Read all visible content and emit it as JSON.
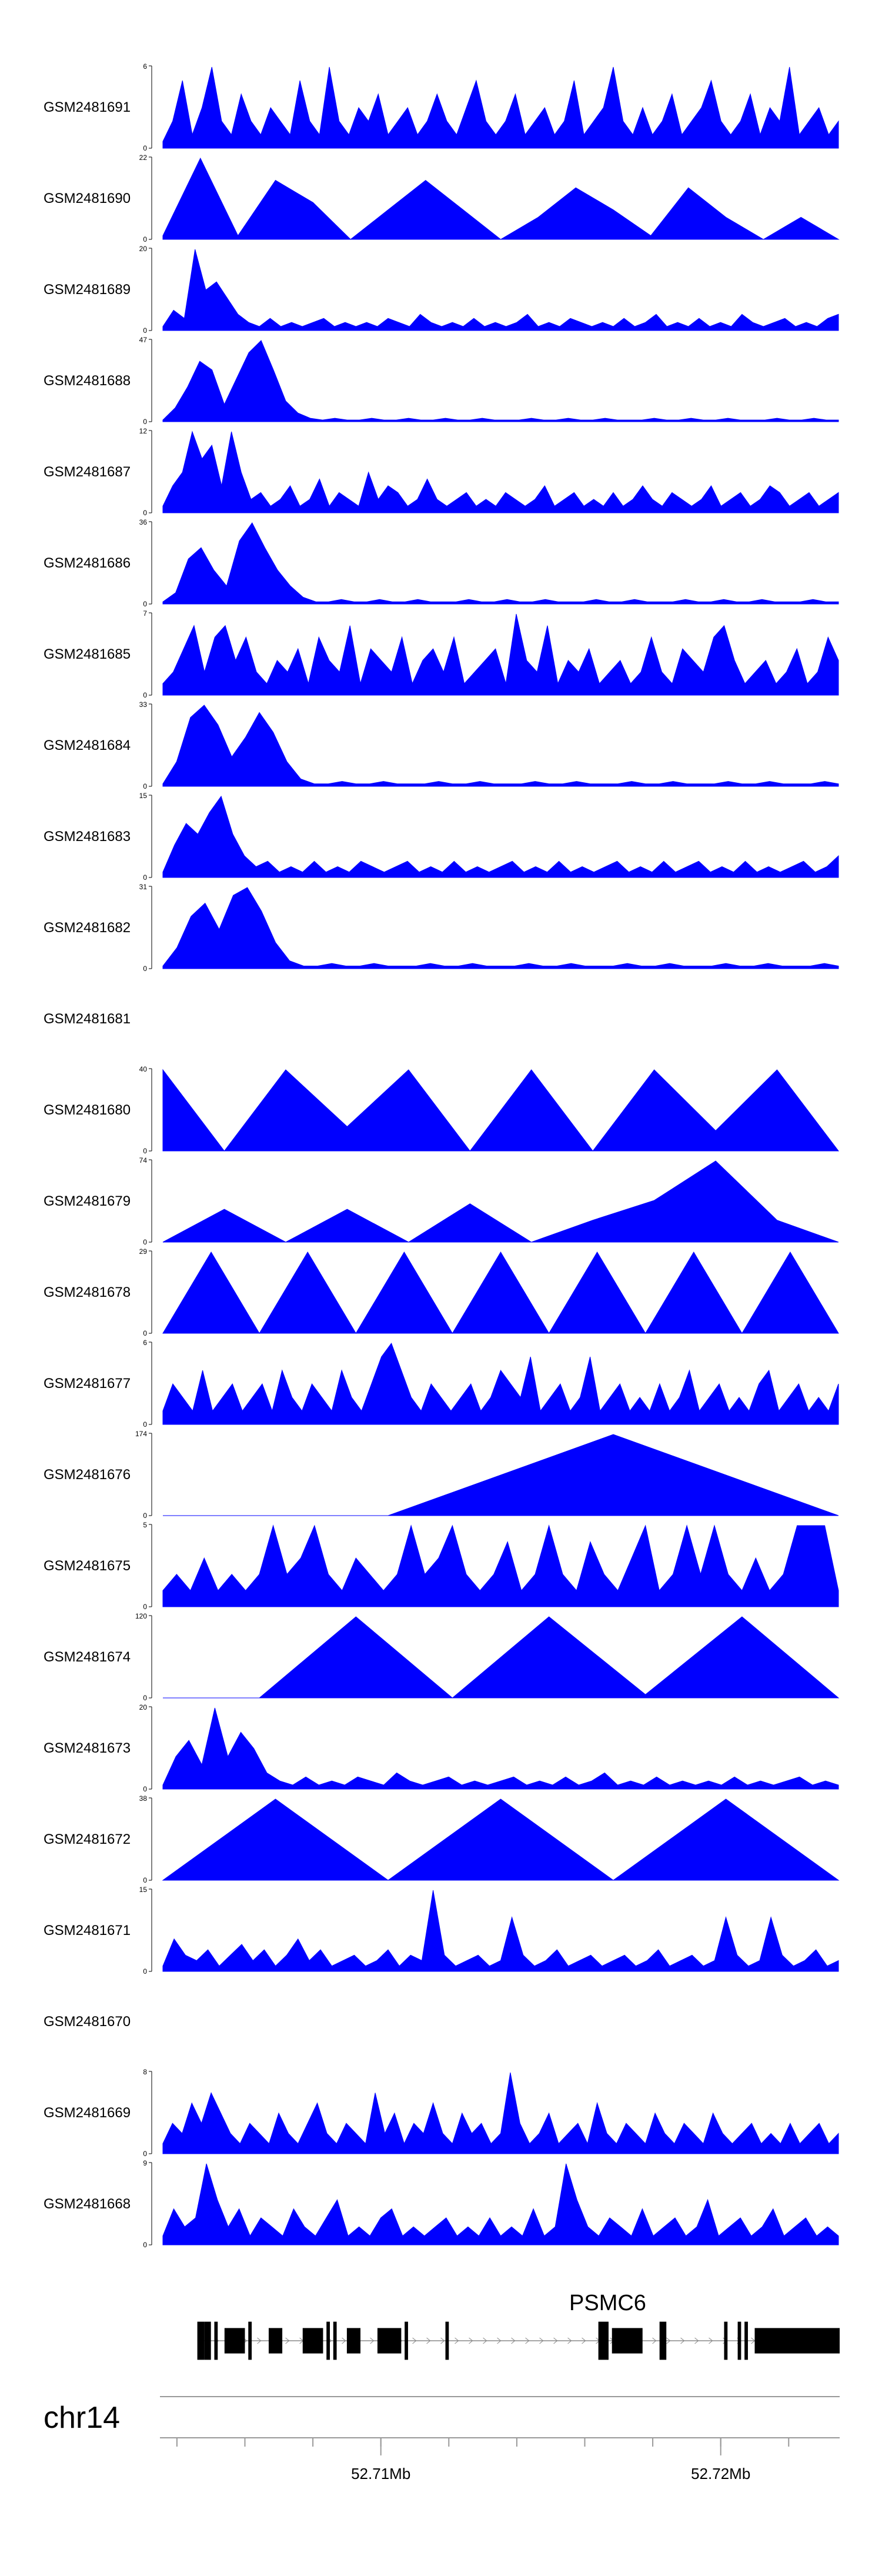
{
  "chart_data": {
    "type": "area",
    "title": "",
    "chromosome": "chr14",
    "x_range_mb": [
      52.7035,
      52.7235
    ],
    "fill_color": "#0000ff",
    "x_ticks": [
      {
        "pos": 52.71,
        "label": "52.71Mb"
      },
      {
        "pos": 52.72,
        "label": "52.72Mb"
      }
    ],
    "gene": {
      "name": "PSMC6",
      "exons": [
        [
          52.7046,
          52.7048
        ],
        [
          52.7048,
          52.705
        ],
        [
          52.7051,
          52.7052
        ],
        [
          52.7054,
          52.706
        ],
        [
          52.7061,
          52.7062
        ],
        [
          52.7067,
          52.7071
        ],
        [
          52.7077,
          52.7083
        ],
        [
          52.7084,
          52.7085
        ],
        [
          52.7086,
          52.7087
        ],
        [
          52.709,
          52.7094
        ],
        [
          52.7099,
          52.7106
        ],
        [
          52.7107,
          52.7108
        ],
        [
          52.7119,
          52.712
        ],
        [
          52.7164,
          52.7167
        ],
        [
          52.7168,
          52.7177
        ],
        [
          52.7182,
          52.7184
        ],
        [
          52.7201,
          52.7202
        ],
        [
          52.7205,
          52.7206
        ],
        [
          52.7207,
          52.7208
        ],
        [
          52.721,
          52.7235
        ]
      ]
    },
    "tracks": [
      {
        "name": "GSM2481691",
        "ymax": 6,
        "peaks": [
          0.5,
          2,
          5,
          1,
          3,
          6,
          2,
          1,
          4,
          2,
          1,
          3,
          2,
          1,
          5,
          2,
          1,
          6,
          2,
          1,
          3,
          2,
          4,
          1,
          2,
          3,
          1,
          2,
          4,
          2,
          1,
          3,
          5,
          2,
          1,
          2,
          4,
          1,
          2,
          3,
          1,
          2,
          5,
          1,
          2,
          3,
          6,
          2,
          1,
          3,
          1,
          2,
          4,
          1,
          2,
          3,
          5,
          2,
          1,
          2,
          4,
          1,
          3,
          2,
          6,
          1,
          2,
          3,
          1,
          2
        ]
      },
      {
        "name": "GSM2481690",
        "ymax": 22,
        "peaks": [
          1,
          22,
          1,
          16,
          10,
          0,
          8,
          16,
          8,
          0,
          6,
          14,
          8,
          1,
          14,
          6,
          0,
          6,
          0
        ]
      },
      {
        "name": "GSM2481689",
        "ymax": 20,
        "peaks": [
          1,
          5,
          3,
          20,
          10,
          12,
          8,
          4,
          2,
          1,
          3,
          1,
          2,
          1,
          2,
          3,
          1,
          2,
          1,
          2,
          1,
          3,
          2,
          1,
          4,
          2,
          1,
          2,
          1,
          3,
          1,
          2,
          1,
          2,
          4,
          1,
          2,
          1,
          3,
          2,
          1,
          2,
          1,
          3,
          1,
          2,
          4,
          1,
          2,
          1,
          3,
          1,
          2,
          1,
          4,
          2,
          1,
          2,
          3,
          1,
          2,
          1,
          3,
          4
        ]
      },
      {
        "name": "GSM2481688",
        "ymax": 47,
        "peaks": [
          1,
          8,
          20,
          35,
          30,
          10,
          25,
          40,
          47,
          30,
          12,
          5,
          2,
          1,
          2,
          1,
          1,
          2,
          1,
          1,
          2,
          1,
          1,
          2,
          1,
          1,
          2,
          1,
          1,
          1,
          2,
          1,
          1,
          2,
          1,
          1,
          2,
          1,
          1,
          1,
          2,
          1,
          1,
          2,
          1,
          1,
          2,
          1,
          1,
          1,
          2,
          1,
          1,
          2,
          1,
          1
        ]
      },
      {
        "name": "GSM2481687",
        "ymax": 12,
        "peaks": [
          1,
          4,
          6,
          12,
          8,
          10,
          4,
          12,
          6,
          2,
          3,
          1,
          2,
          4,
          1,
          2,
          5,
          1,
          3,
          2,
          1,
          6,
          2,
          4,
          3,
          1,
          2,
          5,
          2,
          1,
          2,
          3,
          1,
          2,
          1,
          3,
          2,
          1,
          2,
          4,
          1,
          2,
          3,
          1,
          2,
          1,
          3,
          1,
          2,
          4,
          2,
          1,
          3,
          2,
          1,
          2,
          4,
          1,
          2,
          3,
          1,
          2,
          4,
          3,
          1,
          2,
          3,
          1,
          2,
          3
        ]
      },
      {
        "name": "GSM2481686",
        "ymax": 36,
        "peaks": [
          1,
          5,
          20,
          25,
          15,
          8,
          28,
          36,
          25,
          15,
          8,
          3,
          1,
          1,
          2,
          1,
          1,
          2,
          1,
          1,
          2,
          1,
          1,
          1,
          2,
          1,
          1,
          2,
          1,
          1,
          2,
          1,
          1,
          1,
          2,
          1,
          1,
          2,
          1,
          1,
          1,
          2,
          1,
          1,
          2,
          1,
          1,
          2,
          1,
          1,
          1,
          2,
          1,
          1
        ]
      },
      {
        "name": "GSM2481685",
        "ymax": 7,
        "peaks": [
          1,
          2,
          4,
          6,
          2,
          5,
          6,
          3,
          5,
          2,
          1,
          3,
          2,
          4,
          1,
          5,
          3,
          2,
          6,
          1,
          4,
          3,
          2,
          5,
          1,
          3,
          4,
          2,
          5,
          1,
          2,
          3,
          4,
          1,
          7,
          3,
          2,
          6,
          1,
          3,
          2,
          4,
          1,
          2,
          3,
          1,
          2,
          5,
          2,
          1,
          4,
          3,
          2,
          5,
          6,
          3,
          1,
          2,
          3,
          1,
          2,
          4,
          1,
          2,
          5,
          3
        ]
      },
      {
        "name": "GSM2481684",
        "ymax": 33,
        "peaks": [
          1,
          10,
          28,
          33,
          25,
          12,
          20,
          30,
          22,
          10,
          3,
          1,
          1,
          2,
          1,
          1,
          2,
          1,
          1,
          1,
          2,
          1,
          1,
          2,
          1,
          1,
          1,
          2,
          1,
          1,
          2,
          1,
          1,
          1,
          2,
          1,
          1,
          2,
          1,
          1,
          1,
          2,
          1,
          1,
          2,
          1,
          1,
          1,
          2,
          1
        ]
      },
      {
        "name": "GSM2481683",
        "ymax": 15,
        "peaks": [
          1,
          6,
          10,
          8,
          12,
          15,
          8,
          4,
          2,
          3,
          1,
          2,
          1,
          3,
          1,
          2,
          1,
          3,
          2,
          1,
          2,
          3,
          1,
          2,
          1,
          3,
          1,
          2,
          1,
          2,
          3,
          1,
          2,
          1,
          3,
          1,
          2,
          1,
          2,
          3,
          1,
          2,
          1,
          3,
          1,
          2,
          3,
          1,
          2,
          1,
          3,
          1,
          2,
          1,
          2,
          3,
          1,
          2,
          4
        ]
      },
      {
        "name": "GSM2481682",
        "ymax": 31,
        "peaks": [
          1,
          8,
          20,
          25,
          15,
          28,
          31,
          22,
          10,
          3,
          1,
          1,
          2,
          1,
          1,
          2,
          1,
          1,
          1,
          2,
          1,
          1,
          2,
          1,
          1,
          1,
          2,
          1,
          1,
          2,
          1,
          1,
          1,
          2,
          1,
          1,
          2,
          1,
          1,
          1,
          2,
          1,
          1,
          2,
          1,
          1,
          1,
          2,
          1
        ]
      },
      {
        "name": "GSM2481681",
        "ymax": null,
        "peaks": []
      },
      {
        "name": "GSM2481680",
        "ymax": 40,
        "peaks": [
          40,
          0,
          40,
          12,
          40,
          0,
          40,
          0,
          40,
          10,
          40,
          0
        ]
      },
      {
        "name": "GSM2481679",
        "ymax": 74,
        "peaks": [
          0,
          30,
          0,
          30,
          0,
          35,
          0,
          20,
          38,
          74,
          20,
          0
        ]
      },
      {
        "name": "GSM2481678",
        "ymax": 29,
        "peaks": [
          0,
          29,
          0,
          29,
          0,
          29,
          0,
          29,
          0,
          29,
          0,
          29,
          0,
          29,
          0
        ]
      },
      {
        "name": "GSM2481677",
        "ymax": 6,
        "peaks": [
          1,
          3,
          2,
          1,
          4,
          1,
          2,
          3,
          1,
          2,
          3,
          1,
          4,
          2,
          1,
          3,
          2,
          1,
          4,
          2,
          1,
          3,
          5,
          6,
          4,
          2,
          1,
          3,
          2,
          1,
          2,
          3,
          1,
          2,
          4,
          3,
          2,
          5,
          1,
          2,
          3,
          1,
          2,
          5,
          1,
          2,
          3,
          1,
          2,
          1,
          3,
          1,
          2,
          4,
          1,
          2,
          3,
          1,
          2,
          1,
          3,
          4,
          1,
          2,
          3,
          1,
          2,
          1,
          3
        ]
      },
      {
        "name": "GSM2481676",
        "ymax": 174,
        "peaks": [
          0,
          0,
          174,
          0
        ]
      },
      {
        "name": "GSM2481675",
        "ymax": 5,
        "peaks": [
          1,
          2,
          1,
          3,
          1,
          2,
          1,
          2,
          5,
          2,
          3,
          5,
          2,
          1,
          3,
          2,
          1,
          2,
          5,
          2,
          3,
          5,
          2,
          1,
          2,
          4,
          1,
          2,
          5,
          2,
          1,
          4,
          2,
          1,
          3,
          5,
          1,
          2,
          5,
          2,
          5,
          2,
          1,
          3,
          1,
          2,
          5,
          5,
          5,
          1
        ]
      },
      {
        "name": "GSM2481674",
        "ymax": 120,
        "peaks": [
          0,
          0,
          120,
          0,
          120,
          5,
          120,
          0
        ]
      },
      {
        "name": "GSM2481673",
        "ymax": 20,
        "peaks": [
          1,
          8,
          12,
          6,
          20,
          8,
          14,
          10,
          4,
          2,
          1,
          3,
          1,
          2,
          1,
          3,
          2,
          1,
          4,
          2,
          1,
          2,
          3,
          1,
          2,
          1,
          2,
          3,
          1,
          2,
          1,
          3,
          1,
          2,
          4,
          1,
          2,
          1,
          3,
          1,
          2,
          1,
          2,
          1,
          3,
          1,
          2,
          1,
          2,
          3,
          1,
          2,
          1
        ]
      },
      {
        "name": "GSM2481672",
        "ymax": 38,
        "peaks": [
          0,
          38,
          0,
          38,
          0,
          38,
          0
        ]
      },
      {
        "name": "GSM2481671",
        "ymax": 15,
        "peaks": [
          1,
          6,
          3,
          2,
          4,
          1,
          3,
          5,
          2,
          4,
          1,
          3,
          6,
          2,
          4,
          1,
          2,
          3,
          1,
          2,
          4,
          1,
          3,
          2,
          15,
          3,
          1,
          2,
          3,
          1,
          2,
          10,
          3,
          1,
          2,
          4,
          1,
          2,
          3,
          1,
          2,
          3,
          1,
          2,
          4,
          1,
          2,
          3,
          1,
          2,
          10,
          3,
          1,
          2,
          10,
          3,
          1,
          2,
          4,
          1,
          2
        ]
      },
      {
        "name": "GSM2481670",
        "ymax": null,
        "peaks": []
      },
      {
        "name": "GSM2481669",
        "ymax": 8,
        "peaks": [
          1,
          3,
          2,
          5,
          3,
          6,
          4,
          2,
          1,
          3,
          2,
          1,
          4,
          2,
          1,
          3,
          5,
          2,
          1,
          3,
          2,
          1,
          6,
          2,
          4,
          1,
          3,
          2,
          5,
          2,
          1,
          4,
          2,
          3,
          1,
          2,
          8,
          3,
          1,
          2,
          4,
          1,
          2,
          3,
          1,
          5,
          2,
          1,
          3,
          2,
          1,
          4,
          2,
          1,
          3,
          2,
          1,
          4,
          2,
          1,
          2,
          3,
          1,
          2,
          1,
          3,
          1,
          2,
          3,
          1,
          2
        ]
      },
      {
        "name": "GSM2481668",
        "ymax": 9,
        "peaks": [
          1,
          4,
          2,
          3,
          9,
          5,
          2,
          4,
          1,
          3,
          2,
          1,
          4,
          2,
          1,
          3,
          5,
          1,
          2,
          1,
          3,
          4,
          1,
          2,
          1,
          2,
          3,
          1,
          2,
          1,
          3,
          1,
          2,
          1,
          4,
          1,
          2,
          9,
          5,
          2,
          1,
          3,
          2,
          1,
          4,
          1,
          2,
          3,
          1,
          2,
          5,
          1,
          2,
          3,
          1,
          2,
          4,
          1,
          2,
          3,
          1,
          2,
          1
        ]
      }
    ]
  }
}
